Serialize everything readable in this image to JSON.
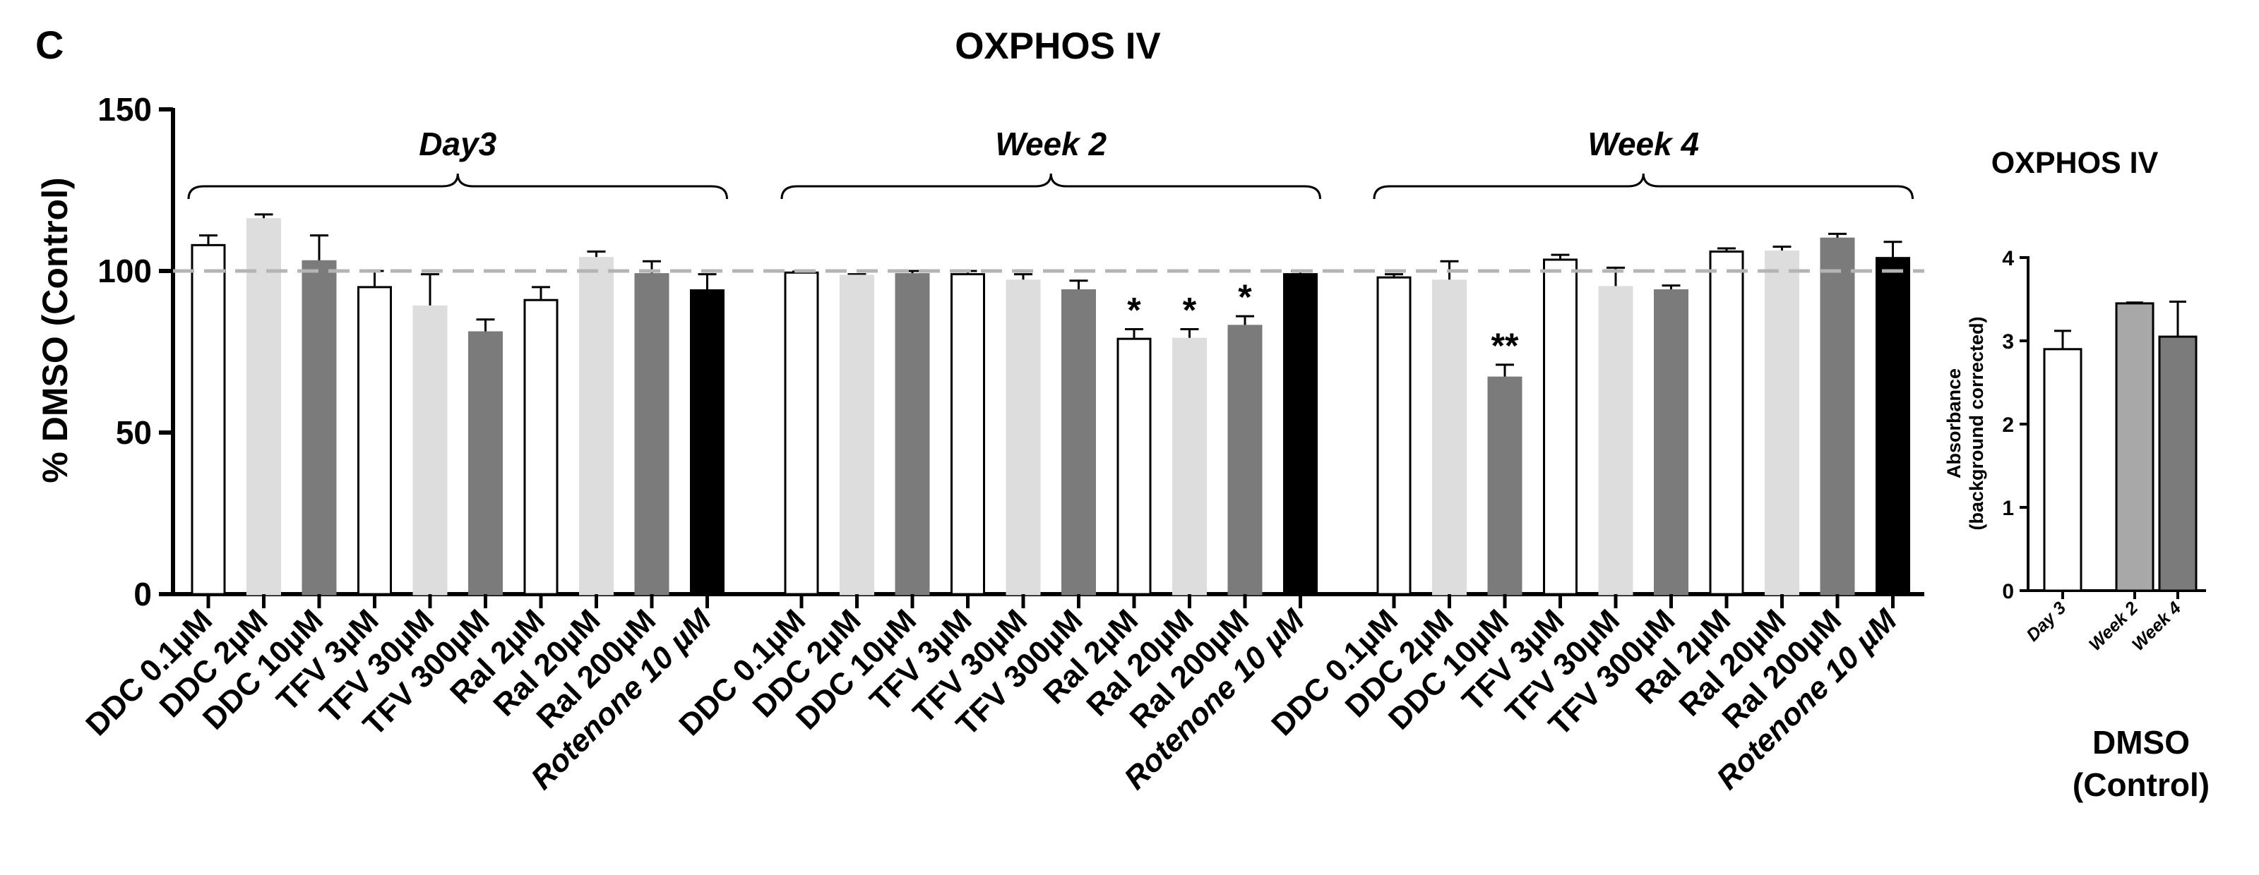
{
  "panel_label": "C",
  "chart_data": [
    {
      "type": "bar",
      "title": "OXPHOS IV",
      "xlabel": "",
      "ylabel": "% DMSO (Control)",
      "ylim": [
        0,
        150
      ],
      "yticks": [
        0,
        50,
        100,
        150
      ],
      "reference_line": 100,
      "grid": false,
      "groups": [
        {
          "name": "Day3",
          "categories": [
            "DDC 0.1µM",
            "DDC 2µM",
            "DDC 10µM",
            "TFV 3µM",
            "TFV 30µM",
            "TFV 300µM",
            "Ral 2µM",
            "Ral 20µM",
            "Ral  200µM",
            "Rotenone 10 µM"
          ],
          "values": [
            108,
            116,
            103,
            95,
            89,
            81,
            91,
            104,
            99,
            94
          ],
          "errors": [
            3,
            1.5,
            8,
            5,
            10,
            4,
            4,
            2,
            4,
            5
          ],
          "annotations": [
            "",
            "",
            "",
            "",
            "",
            "",
            "",
            "",
            "",
            ""
          ]
        },
        {
          "name": "Week 2",
          "categories": [
            "DDC 0.1µM",
            "DDC 2µM",
            "DDC 10µM",
            "TFV 3µM",
            "TFV 30µM",
            "TFV 300µM",
            "Ral 2µM",
            "Ral 20µM",
            "Ral  200µM",
            "Rotenone 10 µM"
          ],
          "values": [
            99.5,
            98.5,
            99,
            99,
            97,
            94,
            79,
            79,
            83,
            99
          ],
          "errors": [
            0.3,
            0.5,
            1,
            1,
            2,
            3,
            3,
            3,
            3,
            1
          ],
          "annotations": [
            "",
            "",
            "",
            "",
            "",
            "",
            "*",
            "*",
            "*",
            ""
          ]
        },
        {
          "name": "Week 4",
          "categories": [
            "DDC 0.1µM",
            "DDC 2µM",
            "DDC 10µM",
            "TFV 3µM",
            "TFV 30µM",
            "TFV 300µM",
            "Ral 2µM",
            "Ral 20µM",
            "Ral  200µM",
            "Rotenone 10 µM"
          ],
          "values": [
            98,
            97,
            67,
            103.5,
            95,
            94,
            106,
            106,
            110,
            104
          ],
          "errors": [
            1,
            6,
            4,
            1.5,
            6,
            1.5,
            1,
            1.5,
            1.5,
            5
          ],
          "annotations": [
            "",
            "",
            "**",
            "",
            "",
            "",
            "",
            "",
            "",
            ""
          ]
        }
      ]
    },
    {
      "type": "bar",
      "title": "OXPHOS IV",
      "xlabel": "DMSO (Control)",
      "xlabel_lines": [
        "DMSO",
        "(Control)"
      ],
      "ylabel": "Absorbance (background corrected)",
      "ylabel_lines": [
        "Absorbance",
        "(background corrected)"
      ],
      "ylim": [
        0,
        4
      ],
      "yticks": [
        0,
        1,
        2,
        3,
        4
      ],
      "grid": false,
      "categories": [
        "Day 3",
        "Week 2",
        "Week 4"
      ],
      "values": [
        2.9,
        3.45,
        3.05
      ],
      "errors": [
        0.22,
        0.01,
        0.42
      ]
    }
  ],
  "colors": {
    "white_bar": "#ffffff",
    "light_bar": "#dddddd",
    "dark_bar": "#7b7b7b",
    "black_bar": "#000000",
    "inset_light": "#a8a8a8",
    "inset_dark": "#7b7b7b",
    "reference_line": "#b4b4b4"
  }
}
